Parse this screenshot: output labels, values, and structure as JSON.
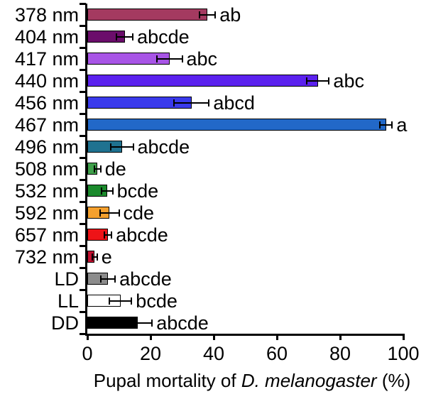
{
  "chart_data": {
    "type": "bar",
    "orientation": "horizontal",
    "xlabel_prefix": "Pupal mortality of ",
    "xlabel_italic": "D. melanogaster",
    "xlabel_suffix": " (%)",
    "xlim": [
      0,
      100
    ],
    "xtick_labels": [
      "0",
      "20",
      "40",
      "60",
      "80",
      "100"
    ],
    "grid": false,
    "legend": "none",
    "categories": [
      "378 nm",
      "404 nm",
      "417 nm",
      "440 nm",
      "456 nm",
      "467 nm",
      "496 nm",
      "508 nm",
      "532 nm",
      "592 nm",
      "657 nm",
      "732 nm",
      "LD",
      "LL",
      "DD"
    ],
    "values": [
      38,
      11.8,
      26,
      73,
      33,
      94.5,
      11,
      3.2,
      6.3,
      7,
      6.5,
      2.3,
      6.5,
      10.5,
      16
    ],
    "errors": [
      2.5,
      2.6,
      4,
      3.5,
      5.5,
      2,
      3.5,
      1,
      1.7,
      3,
      1.2,
      0.8,
      2.3,
      3.5,
      4.5
    ],
    "sig_labels": [
      "ab",
      "abcde",
      "abc",
      "abc",
      "abcd",
      "a",
      "abcde",
      "de",
      "bcde",
      "cde",
      "abcde",
      "e",
      "abcde",
      "bcde",
      "abcde"
    ],
    "bar_colors": [
      "#a43a60",
      "#6b0d6b",
      "#a855e6",
      "#5b21ee",
      "#3a3aec",
      "#2268c8",
      "#1f7290",
      "#3fa04a",
      "#1b8a2c",
      "#f5a02d",
      "#ee1317",
      "#c11030",
      "#8c8c8c",
      "#ffffff",
      "#000000"
    ],
    "axis_color": "#000000"
  }
}
